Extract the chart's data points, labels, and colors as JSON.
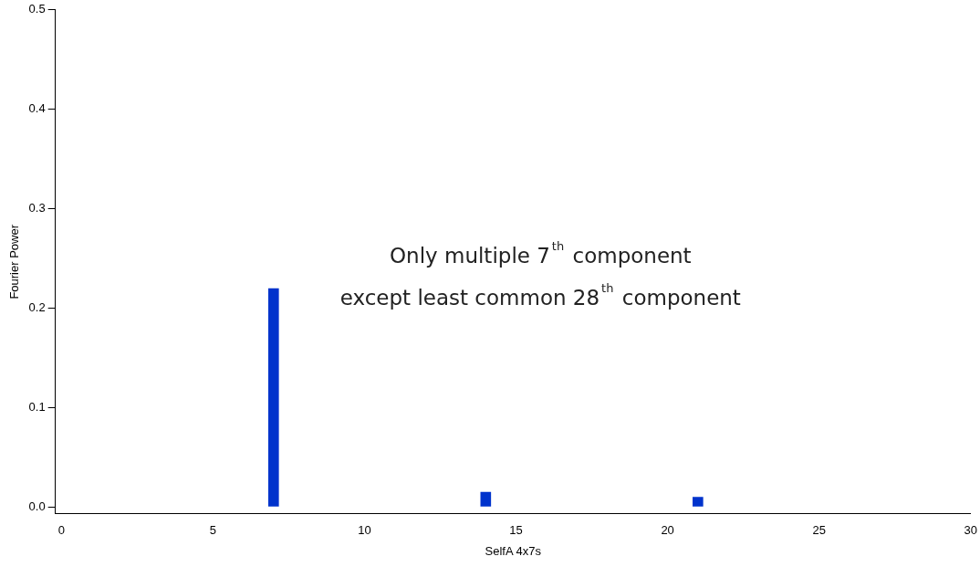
{
  "chart_data": {
    "type": "bar",
    "xlabel": "SelfA 4x7s",
    "ylabel": "Fourier Power",
    "x": [
      0,
      1,
      2,
      3,
      4,
      5,
      6,
      7,
      8,
      9,
      10,
      11,
      12,
      13,
      14,
      15,
      16,
      17,
      18,
      19,
      20,
      21,
      22,
      23,
      24,
      25,
      26,
      27,
      28,
      29,
      30
    ],
    "values": [
      0,
      0,
      0,
      0,
      0,
      0,
      0,
      0.22,
      0,
      0,
      0,
      0,
      0,
      0,
      0.015,
      0,
      0,
      0,
      0,
      0,
      0,
      0.01,
      0,
      0,
      0,
      0,
      0,
      0,
      0,
      0,
      0
    ],
    "color": "#0033cc",
    "xlim": [
      -0.2,
      30
    ],
    "xticks": [
      0,
      5,
      10,
      15,
      20,
      25,
      30
    ],
    "ylim": [
      -0.007,
      0.5
    ],
    "yticks": [
      {
        "value": 0,
        "label": "0.0"
      },
      0.1,
      0.2,
      0.3,
      0.4,
      0.5
    ],
    "grid": false,
    "legend": false,
    "annotations": [
      "Only multiple 7$^{th}$ component",
      "except least common 28$^{th}$ component"
    ]
  }
}
